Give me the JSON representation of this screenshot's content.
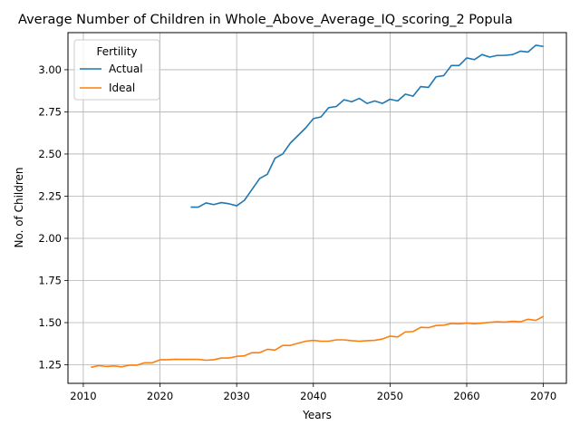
{
  "chart_data": {
    "type": "line",
    "title": "Average Number of Children in Whole_Above_Average_IQ_scoring_2 Popula",
    "xlabel": "Years",
    "ylabel": "No. of Children",
    "xlim": [
      2008,
      2073
    ],
    "ylim": [
      1.14,
      3.22
    ],
    "xticks": [
      2010,
      2020,
      2030,
      2040,
      2050,
      2060,
      2070
    ],
    "yticks": [
      1.25,
      1.5,
      1.75,
      2.0,
      2.25,
      2.5,
      2.75,
      3.0
    ],
    "ytick_labels": [
      "1.25",
      "1.50",
      "1.75",
      "2.00",
      "2.25",
      "2.50",
      "2.75",
      "3.00"
    ],
    "xtick_labels": [
      "2010",
      "2020",
      "2030",
      "2040",
      "2050",
      "2060",
      "2070"
    ],
    "grid": true,
    "legend": {
      "title": "Fertility",
      "placement": "upper-left"
    },
    "series": [
      {
        "name": "Actual",
        "color": "#1f77b4",
        "x": [
          2024,
          2025,
          2026,
          2027,
          2028,
          2029,
          2030,
          2031,
          2032,
          2033,
          2034,
          2035,
          2036,
          2037,
          2038,
          2039,
          2040,
          2041,
          2042,
          2043,
          2044,
          2045,
          2046,
          2047,
          2048,
          2049,
          2050,
          2051,
          2052,
          2053,
          2054,
          2055,
          2056,
          2057,
          2058,
          2059,
          2060,
          2061,
          2062,
          2063,
          2064,
          2065,
          2066,
          2067,
          2068,
          2069,
          2070
        ],
        "values": [
          2.185,
          2.185,
          2.21,
          2.2,
          2.212,
          2.205,
          2.193,
          2.225,
          2.29,
          2.355,
          2.38,
          2.475,
          2.5,
          2.565,
          2.61,
          2.655,
          2.71,
          2.72,
          2.775,
          2.782,
          2.822,
          2.81,
          2.83,
          2.8,
          2.815,
          2.8,
          2.825,
          2.815,
          2.855,
          2.843,
          2.9,
          2.895,
          2.958,
          2.965,
          3.025,
          3.025,
          3.07,
          3.06,
          3.09,
          3.075,
          3.085,
          3.085,
          3.09,
          3.11,
          3.105,
          3.145,
          3.138
        ]
      },
      {
        "name": "Ideal",
        "color": "#ff7f0e",
        "x": [
          2011,
          2012,
          2013,
          2014,
          2015,
          2016,
          2017,
          2018,
          2019,
          2020,
          2021,
          2022,
          2023,
          2024,
          2025,
          2026,
          2027,
          2028,
          2029,
          2030,
          2031,
          2032,
          2033,
          2034,
          2035,
          2036,
          2037,
          2038,
          2039,
          2040,
          2041,
          2042,
          2043,
          2044,
          2045,
          2046,
          2047,
          2048,
          2049,
          2050,
          2051,
          2052,
          2053,
          2054,
          2055,
          2056,
          2057,
          2058,
          2059,
          2060,
          2061,
          2062,
          2063,
          2064,
          2065,
          2066,
          2067,
          2068,
          2069,
          2070
        ],
        "values": [
          1.235,
          1.245,
          1.24,
          1.243,
          1.238,
          1.248,
          1.248,
          1.262,
          1.262,
          1.28,
          1.28,
          1.283,
          1.282,
          1.282,
          1.282,
          1.277,
          1.28,
          1.29,
          1.29,
          1.3,
          1.303,
          1.322,
          1.322,
          1.342,
          1.337,
          1.365,
          1.365,
          1.378,
          1.39,
          1.395,
          1.39,
          1.39,
          1.398,
          1.398,
          1.393,
          1.39,
          1.393,
          1.395,
          1.403,
          1.42,
          1.415,
          1.445,
          1.447,
          1.472,
          1.47,
          1.483,
          1.485,
          1.495,
          1.493,
          1.497,
          1.493,
          1.497,
          1.502,
          1.505,
          1.503,
          1.508,
          1.505,
          1.52,
          1.513,
          1.537
        ]
      }
    ]
  }
}
